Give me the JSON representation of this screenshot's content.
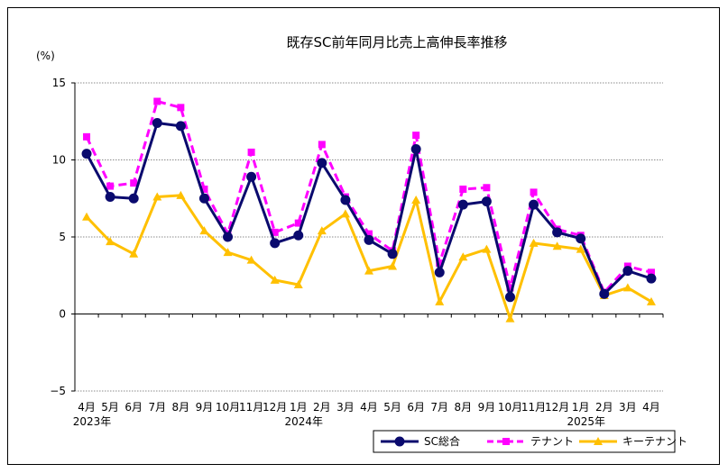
{
  "chart_data": {
    "type": "line",
    "title": "既存SC前年同月比売上高伸長率推移",
    "ylabel": "(%)",
    "xlabel": "",
    "ylim": [
      -5,
      15
    ],
    "yticks": [
      "15",
      "10",
      "5",
      "0",
      "−5"
    ],
    "ytick_values": [
      15,
      10,
      5,
      0,
      -5
    ],
    "grid": "horizontal dashed",
    "legend_position": "bottom-right",
    "categories": [
      "4月",
      "5月",
      "6月",
      "7月",
      "8月",
      "9月",
      "10月",
      "11月",
      "12月",
      "1月",
      "2月",
      "3月",
      "4月",
      "5月",
      "6月",
      "7月",
      "8月",
      "9月",
      "10月",
      "11月",
      "12月",
      "1月",
      "2月",
      "3月",
      "4月"
    ],
    "year_labels": [
      {
        "text": "2023年",
        "category_index": 0
      },
      {
        "text": "2024年",
        "category_index": 9
      },
      {
        "text": "2025年",
        "category_index": 21
      }
    ],
    "series": [
      {
        "name": "SC総合",
        "color": "#0a0a6e",
        "dash": "solid",
        "marker": "circle",
        "values": [
          10.4,
          7.6,
          7.5,
          12.4,
          12.2,
          7.5,
          5.0,
          8.9,
          4.6,
          5.1,
          9.8,
          7.4,
          4.8,
          3.9,
          10.7,
          2.7,
          7.1,
          7.3,
          1.1,
          7.1,
          5.3,
          4.9,
          1.3,
          2.8,
          2.3
        ]
      },
      {
        "name": "テナント",
        "color": "#ff00ff",
        "dash": "dashed",
        "marker": "square",
        "values": [
          11.5,
          8.3,
          8.5,
          13.8,
          13.4,
          8.1,
          5.2,
          10.5,
          5.3,
          5.9,
          11.0,
          7.6,
          5.2,
          4.1,
          11.6,
          3.3,
          8.1,
          8.2,
          1.7,
          7.9,
          5.5,
          5.1,
          1.4,
          3.1,
          2.7
        ]
      },
      {
        "name": "キーテナント",
        "color": "#ffc000",
        "dash": "solid",
        "marker": "triangle",
        "values": [
          6.3,
          4.7,
          3.9,
          7.6,
          7.7,
          5.4,
          4.0,
          3.5,
          2.2,
          1.9,
          5.4,
          6.5,
          2.8,
          3.1,
          7.4,
          0.8,
          3.7,
          4.2,
          -0.3,
          4.6,
          4.4,
          4.2,
          1.2,
          1.7,
          0.8
        ]
      }
    ]
  }
}
